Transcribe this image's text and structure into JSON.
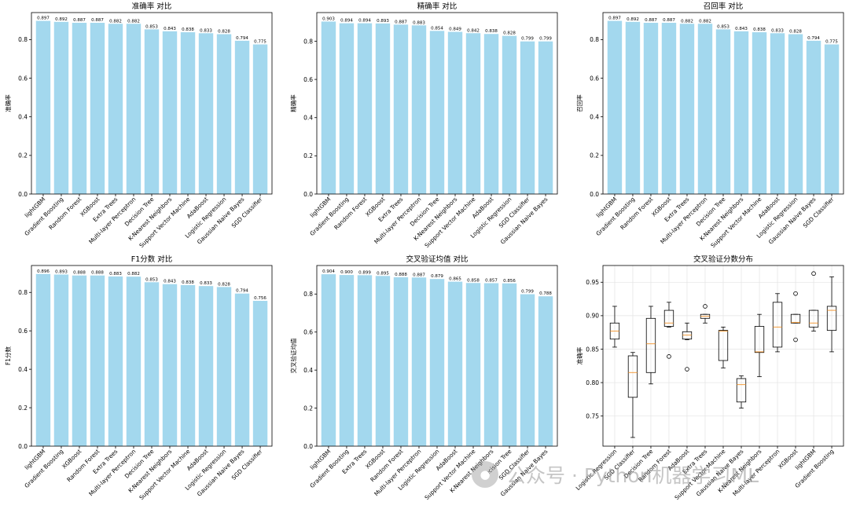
{
  "chart_data": [
    {
      "type": "bar",
      "title": "准确率 对比",
      "ylabel": "准确率",
      "ylim": [
        0,
        0.94
      ],
      "yticks": [
        0.0,
        0.2,
        0.4,
        0.6,
        0.8
      ],
      "color": "#a3d8ee",
      "categories": [
        "lightGBM",
        "Gradient Boosting",
        "Random Forest",
        "XGBoost",
        "Extra Trees",
        "Multi-layer Perceptron",
        "Decision Tree",
        "K-Nearest Neighbors",
        "Support Vector Machine",
        "AdaBoost",
        "Logistic Regression",
        "Gaussian Naive Bayes",
        "SGD Classifier"
      ],
      "values": [
        0.897,
        0.892,
        0.887,
        0.887,
        0.882,
        0.882,
        0.853,
        0.843,
        0.838,
        0.833,
        0.828,
        0.794,
        0.775
      ],
      "labels": [
        "0.897",
        "0.892",
        "0.887",
        "0.887",
        "0.882",
        "0.882",
        "0.853",
        "0.843",
        "0.838",
        "0.833",
        "0.828",
        "0.794",
        "0.775"
      ]
    },
    {
      "type": "bar",
      "title": "精确率 对比",
      "ylabel": "精确率",
      "ylim": [
        0,
        0.95
      ],
      "yticks": [
        0.0,
        0.2,
        0.4,
        0.6,
        0.8
      ],
      "color": "#a3d8ee",
      "categories": [
        "lightGBM",
        "Gradient Boosting",
        "Random Forest",
        "XGBoost",
        "Extra Trees",
        "Multi-layer Perceptron",
        "Decision Tree",
        "K-Nearest Neighbors",
        "Support Vector Machine",
        "AdaBoost",
        "Logistic Regression",
        "SGD Classifier",
        "Gaussian Naive Bayes"
      ],
      "values": [
        0.903,
        0.894,
        0.894,
        0.893,
        0.887,
        0.883,
        0.854,
        0.849,
        0.842,
        0.838,
        0.828,
        0.799,
        0.799
      ],
      "labels": [
        "0.903",
        "0.894",
        "0.894",
        "0.893",
        "0.887",
        "0.883",
        "0.854",
        "0.849",
        "0.842",
        "0.838",
        "0.828",
        "0.799",
        "0.799"
      ]
    },
    {
      "type": "bar",
      "title": "召回率 对比",
      "ylabel": "召回率",
      "ylim": [
        0,
        0.94
      ],
      "yticks": [
        0.0,
        0.2,
        0.4,
        0.6,
        0.8
      ],
      "color": "#a3d8ee",
      "categories": [
        "lightGBM",
        "Gradient Boosting",
        "Random Forest",
        "XGBoost",
        "Extra Trees",
        "Multi-layer Perceptron",
        "Decision Tree",
        "K-Nearest Neighbors",
        "Support Vector Machine",
        "AdaBoost",
        "Logistic Regression",
        "Gaussian Naive Bayes",
        "SGD Classifier"
      ],
      "values": [
        0.897,
        0.892,
        0.887,
        0.887,
        0.882,
        0.882,
        0.853,
        0.843,
        0.838,
        0.833,
        0.828,
        0.794,
        0.775
      ],
      "labels": [
        "0.897",
        "0.892",
        "0.887",
        "0.887",
        "0.882",
        "0.882",
        "0.853",
        "0.843",
        "0.838",
        "0.833",
        "0.828",
        "0.794",
        "0.775"
      ]
    },
    {
      "type": "bar",
      "title": "F1分数 对比",
      "ylabel": "F1分数",
      "ylim": [
        0,
        0.94
      ],
      "yticks": [
        0.0,
        0.2,
        0.4,
        0.6,
        0.8
      ],
      "color": "#a3d8ee",
      "categories": [
        "lightGBM",
        "Gradient Boosting",
        "XGBoost",
        "Random Forest",
        "Extra Trees",
        "Multi-layer Perceptron",
        "Decision Tree",
        "K-Nearest Neighbors",
        "Support Vector Machine",
        "AdaBoost",
        "Logistic Regression",
        "Gaussian Naive Bayes",
        "SGD Classifier"
      ],
      "values": [
        0.896,
        0.893,
        0.888,
        0.888,
        0.883,
        0.882,
        0.853,
        0.843,
        0.838,
        0.833,
        0.828,
        0.794,
        0.756
      ],
      "labels": [
        "0.896",
        "0.893",
        "0.888",
        "0.888",
        "0.883",
        "0.882",
        "0.853",
        "0.843",
        "0.838",
        "0.833",
        "0.828",
        "0.794",
        "0.756"
      ]
    },
    {
      "type": "bar",
      "title": "交叉验证均值 对比",
      "ylabel": "交叉验证均值",
      "ylim": [
        0,
        0.95
      ],
      "yticks": [
        0.0,
        0.2,
        0.4,
        0.6,
        0.8
      ],
      "color": "#a3d8ee",
      "categories": [
        "lightGBM",
        "Gradient Boosting",
        "Extra Trees",
        "XGBoost",
        "Random Forest",
        "Multi-layer Perceptron",
        "Logistic Regression",
        "AdaBoost",
        "Support Vector Machine",
        "K-Nearest Neighbors",
        "Decision Tree",
        "SGD Classifier",
        "Gaussian Naive Bayes"
      ],
      "values": [
        0.904,
        0.9,
        0.899,
        0.895,
        0.888,
        0.887,
        0.879,
        0.865,
        0.858,
        0.857,
        0.856,
        0.799,
        0.788
      ],
      "labels": [
        "0.904",
        "0.900",
        "0.899",
        "0.895",
        "0.888",
        "0.887",
        "0.879",
        "0.865",
        "0.858",
        "0.857",
        "0.856",
        "0.799",
        "0.788"
      ]
    },
    {
      "type": "box",
      "title": "交叉验证分数分布",
      "ylabel": "准确率",
      "ylim": [
        0.705,
        0.975
      ],
      "yticks": [
        0.75,
        0.8,
        0.85,
        0.9,
        0.95
      ],
      "ytick_labels": [
        "0.75",
        "0.80",
        "0.85",
        "0.90",
        "0.95"
      ],
      "grid": true,
      "categories": [
        "Logistic Regression",
        "SGD Classifier",
        "Decision Tree",
        "Random Forest",
        "AdaBoost",
        "Extra Trees",
        "Support Vector Machine",
        "Gaussian Naive Bayes",
        "K-Nearest Neighbors",
        "Multi-layer Perceptron",
        "XGBoost",
        "lightGBM",
        "Gradient Boosting"
      ],
      "boxes": [
        {
          "whislo": 0.853,
          "q1": 0.865,
          "med": 0.877,
          "q3": 0.889,
          "whishi": 0.914,
          "fliers": []
        },
        {
          "whislo": 0.718,
          "q1": 0.778,
          "med": 0.815,
          "q3": 0.84,
          "whishi": 0.845,
          "fliers": []
        },
        {
          "whislo": 0.798,
          "q1": 0.815,
          "med": 0.858,
          "q3": 0.896,
          "whishi": 0.914,
          "fliers": []
        },
        {
          "whislo": 0.883,
          "q1": 0.884,
          "med": 0.889,
          "q3": 0.908,
          "whishi": 0.92,
          "fliers": [
            0.839
          ]
        },
        {
          "whislo": 0.864,
          "q1": 0.865,
          "med": 0.871,
          "q3": 0.876,
          "whishi": 0.889,
          "fliers": [
            0.82
          ]
        },
        {
          "whislo": 0.889,
          "q1": 0.896,
          "med": 0.899,
          "q3": 0.902,
          "whishi": 0.902,
          "fliers": [
            0.914
          ]
        },
        {
          "whislo": 0.822,
          "q1": 0.833,
          "med": 0.877,
          "q3": 0.878,
          "whishi": 0.883,
          "fliers": []
        },
        {
          "whislo": 0.762,
          "q1": 0.771,
          "med": 0.797,
          "q3": 0.806,
          "whishi": 0.81,
          "fliers": []
        },
        {
          "whislo": 0.809,
          "q1": 0.845,
          "med": 0.846,
          "q3": 0.884,
          "whishi": 0.902,
          "fliers": []
        },
        {
          "whislo": 0.846,
          "q1": 0.853,
          "med": 0.883,
          "q3": 0.92,
          "whishi": 0.933,
          "fliers": []
        },
        {
          "whislo": 0.889,
          "q1": 0.889,
          "med": 0.89,
          "q3": 0.902,
          "whishi": 0.902,
          "fliers": [
            0.933,
            0.864
          ]
        },
        {
          "whislo": 0.877,
          "q1": 0.883,
          "med": 0.889,
          "q3": 0.908,
          "whishi": 0.908,
          "fliers": [
            0.963
          ]
        },
        {
          "whislo": 0.846,
          "q1": 0.878,
          "med": 0.908,
          "q3": 0.914,
          "whishi": 0.958,
          "fliers": []
        }
      ],
      "box_color": "#000000",
      "median_color": "#f39c3c"
    }
  ],
  "watermark": {
    "logo_text": "●",
    "text": "公众号 · Python机器学习ML"
  }
}
